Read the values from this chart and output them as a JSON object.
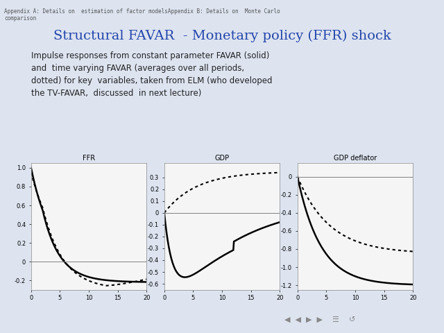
{
  "title": "Structural FAVAR  - Monetary policy (FFR) shock",
  "subtitle": "Impulse responses from constant parameter FAVAR (solid)\nand  time varying FAVAR (averages over all periods,\ndotted) for key  variables, taken from ELM (who developed\nthe TV-FAVAR,  discussed  in next lecture)",
  "header": "Appendix A: Details on  estimation of factor modelsAppendix B: Details on  Monte Carlo\ncomparison",
  "background_color": "#dde4f0",
  "panel_bg": "#f5f5f5",
  "subplots": [
    {
      "title": "FFR",
      "ylim": [
        -0.3,
        1.05
      ],
      "yticks": [
        -0.2,
        0.0,
        0.2,
        0.4,
        0.6,
        0.8,
        1.0
      ]
    },
    {
      "title": "GDP",
      "ylim": [
        -0.65,
        0.42
      ],
      "yticks": [
        -0.6,
        -0.5,
        -0.4,
        -0.3,
        -0.2,
        -0.1,
        0.0,
        0.1,
        0.2,
        0.3
      ]
    },
    {
      "title": "GDP deflator",
      "ylim": [
        -1.25,
        0.15
      ],
      "yticks": [
        -1.2,
        -1.0,
        -0.8,
        -0.6,
        -0.4,
        -0.2,
        0.0
      ]
    }
  ],
  "x_max": 20,
  "xticks": [
    0,
    5,
    10,
    15,
    20
  ]
}
